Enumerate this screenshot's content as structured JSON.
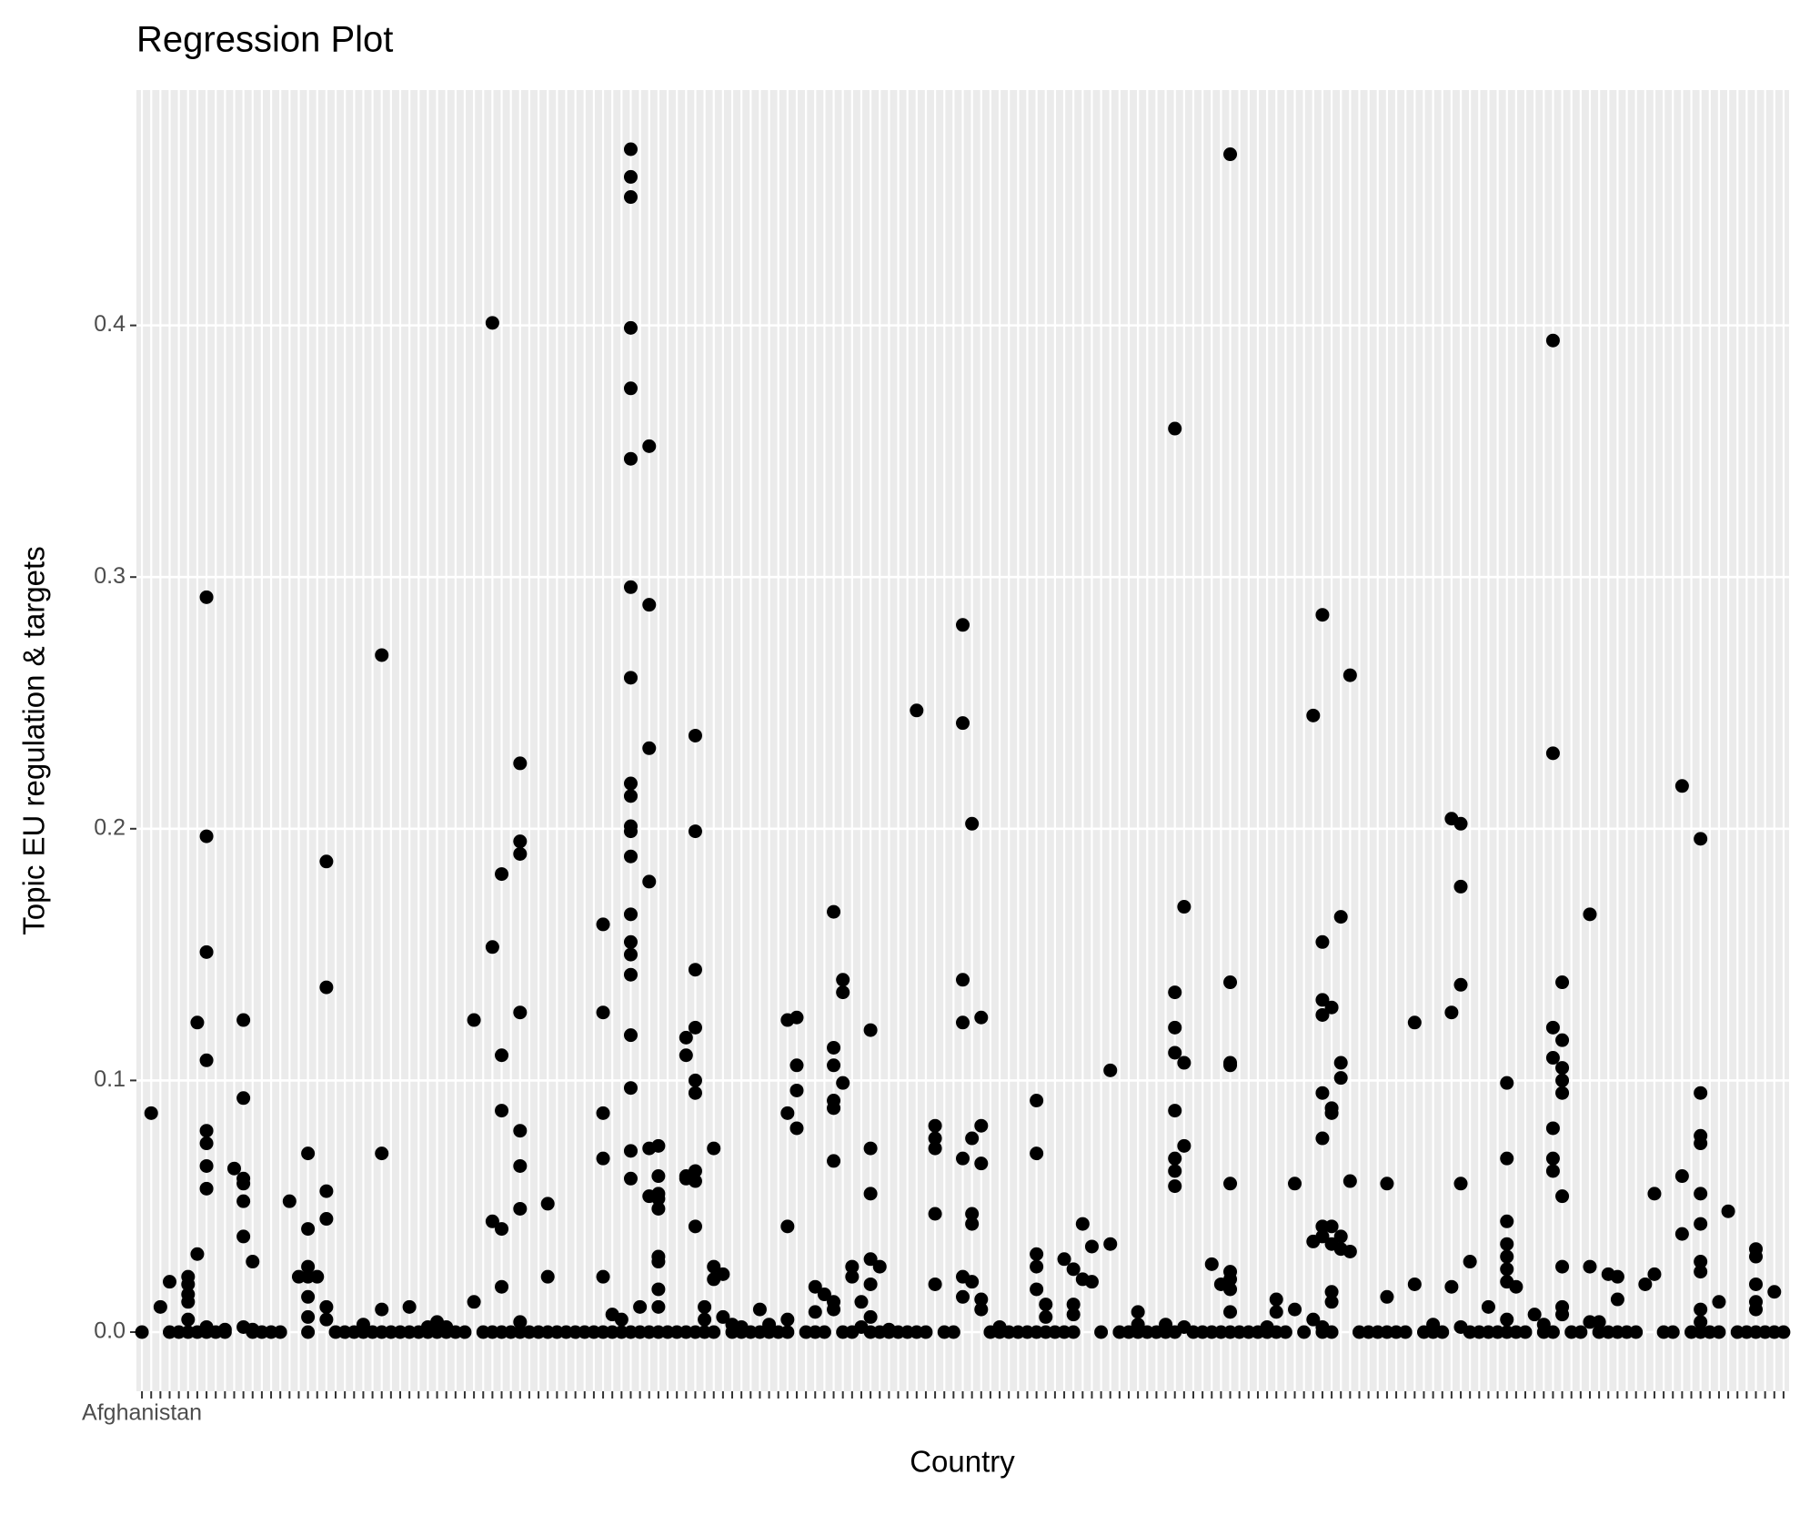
{
  "chart_data": {
    "type": "strip",
    "title": "Regression Plot",
    "x_label": "Country",
    "y_label": "Topic EU regulation & targets",
    "categories": [
      "Afghanistan",
      null,
      null,
      null,
      null,
      null,
      null,
      null,
      null,
      null,
      null,
      null,
      null,
      null,
      null,
      null,
      null,
      null,
      null,
      null,
      null,
      null,
      null,
      null,
      null,
      null,
      null,
      null,
      null,
      null,
      null,
      null,
      null,
      null,
      null,
      null,
      null,
      null,
      null,
      null,
      null,
      null,
      null,
      null,
      null,
      null,
      null,
      null,
      null,
      null,
      null,
      null,
      null,
      null,
      null,
      null,
      null,
      null,
      null,
      null,
      null,
      null,
      null,
      null,
      null,
      null,
      null,
      null,
      null,
      null,
      null,
      null,
      null,
      null,
      null,
      null,
      null,
      null,
      null,
      null,
      null,
      null,
      null,
      null,
      null,
      null,
      null,
      null,
      null,
      null,
      null,
      null,
      null,
      null,
      null,
      null,
      null,
      null,
      null,
      null,
      null,
      null,
      null,
      null,
      null,
      null,
      null,
      null,
      null,
      null,
      null,
      null,
      null,
      null,
      null,
      null,
      null,
      null,
      null,
      null,
      null,
      null,
      null,
      null,
      null,
      null,
      null,
      null,
      null,
      null,
      null,
      null,
      null,
      null,
      null,
      null,
      null,
      null,
      null,
      null,
      null,
      null,
      null,
      null,
      null,
      null,
      null,
      null,
      null,
      null,
      null,
      null,
      null,
      null,
      null,
      null,
      null,
      null,
      null,
      null,
      null,
      null,
      null,
      null,
      null,
      null,
      null,
      null,
      null,
      null,
      null,
      null,
      null,
      null,
      null,
      null,
      null,
      null,
      null
    ],
    "values": [
      [
        0
      ],
      [
        0.087
      ],
      [
        0.01
      ],
      [
        0.02,
        0
      ],
      [
        0
      ],
      [
        0.022,
        0.019,
        0.015,
        0.012,
        0.005,
        0
      ],
      [
        0.123,
        0.031,
        0
      ],
      [
        0.292,
        0.197,
        0.151,
        0.108,
        0.08,
        0.075,
        0.066,
        0.057,
        0.002,
        0
      ],
      [
        0
      ],
      [
        0.001,
        0
      ],
      [
        0.065
      ],
      [
        0.124,
        0.093,
        0.061,
        0.059,
        0.052,
        0.038,
        0.002
      ],
      [
        0.028,
        0.001,
        0
      ],
      [
        0
      ],
      [
        0
      ],
      [
        0
      ],
      [
        0.052
      ],
      [
        0.022
      ],
      [
        0.071,
        0.041,
        0.026,
        0.022,
        0.014,
        0.006,
        0
      ],
      [
        0.022
      ],
      [
        0.187,
        0.137,
        0.056,
        0.045,
        0.01,
        0.005
      ],
      [
        0
      ],
      [
        0
      ],
      [
        0
      ],
      [
        0.003,
        0
      ],
      [
        0
      ],
      [
        0.269,
        0.071,
        0.009,
        0
      ],
      [
        0
      ],
      [
        0
      ],
      [
        0.01,
        0
      ],
      [
        0
      ],
      [
        0.002,
        0
      ],
      [
        0.004,
        0
      ],
      [
        0.002,
        0
      ],
      [
        0
      ],
      [
        0
      ],
      [
        0.124,
        0.012
      ],
      [
        0
      ],
      [
        0.401,
        0.153,
        0.044,
        0
      ],
      [
        0.182,
        0.11,
        0.088,
        0.041,
        0.018,
        0
      ],
      [
        0
      ],
      [
        0.226,
        0.195,
        0.19,
        0.127,
        0.08,
        0.066,
        0.049,
        0.004,
        0
      ],
      [
        0
      ],
      [
        0
      ],
      [
        0.051,
        0.022,
        0
      ],
      [
        0
      ],
      [
        0
      ],
      [
        0
      ],
      [
        0
      ],
      [
        0
      ],
      [
        0.162,
        0.127,
        0.087,
        0.069,
        0.022,
        0
      ],
      [
        0.007,
        0
      ],
      [
        0.005,
        0
      ],
      [
        0.47,
        0.459,
        0.451,
        0.399,
        0.375,
        0.347,
        0.296,
        0.26,
        0.218,
        0.213,
        0.201,
        0.199,
        0.189,
        0.166,
        0.155,
        0.15,
        0.142,
        0.118,
        0.097,
        0.072,
        0.061,
        0
      ],
      [
        0.01,
        0
      ],
      [
        0.352,
        0.289,
        0.232,
        0.179,
        0.073,
        0.054,
        0
      ],
      [
        0.074,
        0.062,
        0.055,
        0.053,
        0.049,
        0.03,
        0.028,
        0.017,
        0.01,
        0
      ],
      [
        0
      ],
      [
        0
      ],
      [
        0.117,
        0.11,
        0.062,
        0.061,
        0
      ],
      [
        0.237,
        0.199,
        0.144,
        0.121,
        0.1,
        0.095,
        0.064,
        0.06,
        0.042,
        0
      ],
      [
        0.01,
        0.005,
        0
      ],
      [
        0.073,
        0.026,
        0.021,
        0
      ],
      [
        0.023,
        0.006
      ],
      [
        0.003,
        0
      ],
      [
        0.002,
        0
      ],
      [
        0
      ],
      [
        0.009,
        0
      ],
      [
        0.003,
        0
      ],
      [
        0
      ],
      [
        0.124,
        0.087,
        0.042,
        0.005,
        0
      ],
      [
        0.125,
        0.106,
        0.096,
        0.081
      ],
      [
        0
      ],
      [
        0.018,
        0.008,
        0
      ],
      [
        0.015,
        0
      ],
      [
        0.167,
        0.113,
        0.106,
        0.092,
        0.089,
        0.068,
        0.012,
        0.009
      ],
      [
        0.14,
        0.135,
        0.099,
        0
      ],
      [
        0.026,
        0.022,
        0
      ],
      [
        0.012,
        0.002
      ],
      [
        0.12,
        0.073,
        0.055,
        0.029,
        0.019,
        0.006,
        0
      ],
      [
        0.026,
        0
      ],
      [
        0.001,
        0
      ],
      [
        0
      ],
      [
        0
      ],
      [
        0.247,
        0
      ],
      [
        0
      ],
      [
        0.082,
        0.077,
        0.073,
        0.047,
        0.019
      ],
      [
        0
      ],
      [
        0
      ],
      [
        0.281,
        0.242,
        0.14,
        0.123,
        0.069,
        0.022,
        0.014
      ],
      [
        0.202,
        0.077,
        0.047,
        0.043,
        0.02
      ],
      [
        0.125,
        0.082,
        0.067,
        0.013,
        0.009
      ],
      [
        0
      ],
      [
        0.002,
        0
      ],
      [
        0
      ],
      [
        0
      ],
      [
        0
      ],
      [
        0.092,
        0.071,
        0.031,
        0.026,
        0.017,
        0
      ],
      [
        0.011,
        0.006,
        0
      ],
      [
        0
      ],
      [
        0.029,
        0
      ],
      [
        0.025,
        0.011,
        0.007,
        0
      ],
      [
        0.043,
        0.021
      ],
      [
        0.034,
        0.02
      ],
      [
        0
      ],
      [
        0.104,
        0.035
      ],
      [
        0
      ],
      [
        0
      ],
      [
        0.008,
        0.003,
        0
      ],
      [
        0
      ],
      [
        0
      ],
      [
        0.003,
        0
      ],
      [
        0.359,
        0.135,
        0.121,
        0.111,
        0.088,
        0.069,
        0.064,
        0.058,
        0
      ],
      [
        0.169,
        0.107,
        0.074,
        0.002
      ],
      [
        0
      ],
      [
        0
      ],
      [
        0.027,
        0
      ],
      [
        0.019,
        0
      ],
      [
        0.468,
        0.139,
        0.107,
        0.106,
        0.059,
        0.024,
        0.021,
        0.017,
        0.008,
        0
      ],
      [
        0
      ],
      [
        0
      ],
      [
        0
      ],
      [
        0.002,
        0
      ],
      [
        0.013,
        0.008,
        0
      ],
      [
        0
      ],
      [
        0.059,
        0.009
      ],
      [
        0
      ],
      [
        0.245,
        0.036,
        0.005
      ],
      [
        0.285,
        0.155,
        0.132,
        0.126,
        0.095,
        0.077,
        0.042,
        0.038,
        0.002,
        0
      ],
      [
        0.129,
        0.089,
        0.087,
        0.042,
        0.035,
        0.016,
        0.012,
        0
      ],
      [
        0.165,
        0.107,
        0.101,
        0.038,
        0.033
      ],
      [
        0.261,
        0.06,
        0.032
      ],
      [
        0
      ],
      [
        0
      ],
      [
        0
      ],
      [
        0.059,
        0.014,
        0
      ],
      [
        0
      ],
      [
        0
      ],
      [
        0.123,
        0.019
      ],
      [
        0
      ],
      [
        0.003,
        0
      ],
      [
        0
      ],
      [
        0.204,
        0.127,
        0.018
      ],
      [
        0.202,
        0.177,
        0.138,
        0.059,
        0.002
      ],
      [
        0.028,
        0
      ],
      [
        0
      ],
      [
        0.01,
        0
      ],
      [
        0
      ],
      [
        0.099,
        0.069,
        0.044,
        0.035,
        0.03,
        0.025,
        0.02,
        0.005,
        0
      ],
      [
        0.018,
        0
      ],
      [
        0
      ],
      [
        0.007
      ],
      [
        0.003,
        0
      ],
      [
        0.394,
        0.23,
        0.121,
        0.109,
        0.081,
        0.069,
        0.064,
        0
      ],
      [
        0.139,
        0.116,
        0.105,
        0.1,
        0.095,
        0.054,
        0.026,
        0.01,
        0.007
      ],
      [
        0
      ],
      [
        0
      ],
      [
        0.166,
        0.026,
        0.004
      ],
      [
        0.004,
        0
      ],
      [
        0.023,
        0
      ],
      [
        0.022,
        0.013,
        0
      ],
      [
        0
      ],
      [
        0
      ],
      [
        0.019
      ],
      [
        0.055,
        0.023
      ],
      [
        0
      ],
      [
        0
      ],
      [
        0.217,
        0.062,
        0.039
      ],
      [
        0
      ],
      [
        0.196,
        0.095,
        0.078,
        0.075,
        0.055,
        0.043,
        0.028,
        0.024,
        0.009,
        0.004,
        0
      ],
      [
        0
      ],
      [
        0.012,
        0
      ],
      [
        0.048
      ],
      [
        0
      ],
      [
        0
      ],
      [
        0.033,
        0.03,
        0.019,
        0.012,
        0.009,
        0
      ],
      [
        0
      ],
      [
        0.016,
        0
      ],
      [
        0
      ]
    ],
    "color": "#000000",
    "ylim": [
      -0.0235,
      0.4935
    ],
    "yticks": [
      {
        "value": 0,
        "label": "0.0"
      },
      0.1,
      0.2,
      0.3,
      0.4
    ],
    "grid": true
  }
}
